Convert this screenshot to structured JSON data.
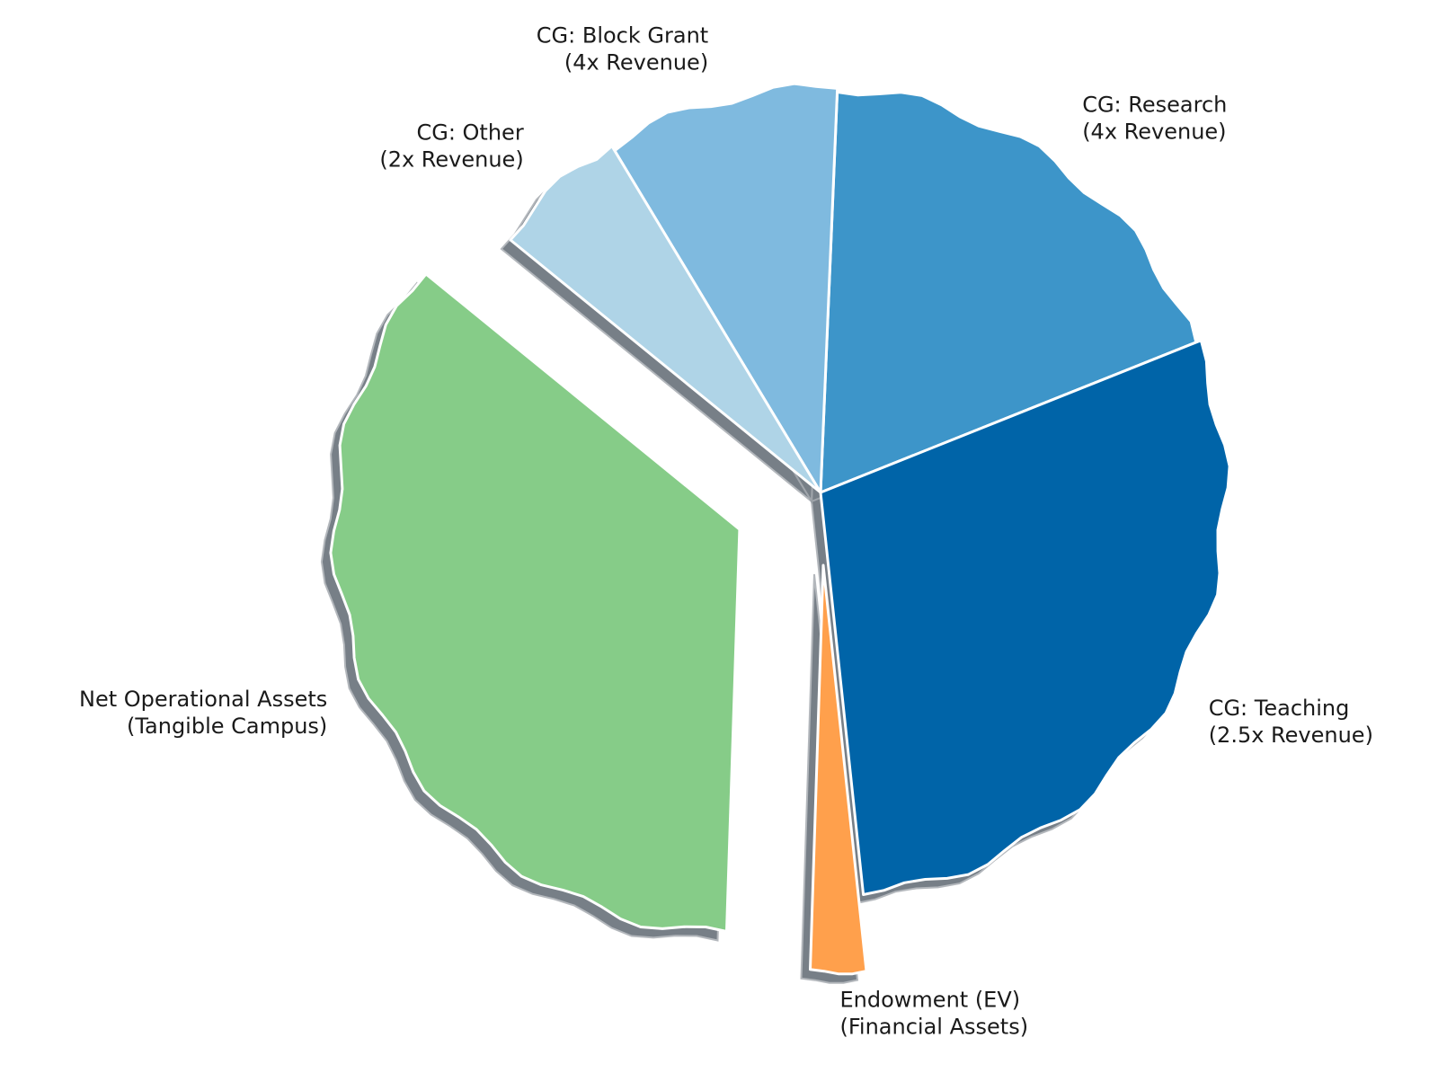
{
  "chart_data": {
    "type": "pie",
    "start_angle_deg": 21.8,
    "direction": "counterclockwise",
    "slices": [
      {
        "label": [
          "CG: Research",
          "(4x Revenue)"
        ],
        "value": 18.3,
        "color": "#3d95c9",
        "explode": 0
      },
      {
        "label": [
          "CG: Block Grant",
          "(4x Revenue)"
        ],
        "value": 9.3,
        "color": "#7fbadf",
        "explode": 0
      },
      {
        "label": [
          "CG: Other",
          "(2x Revenue)"
        ],
        "value": 5.5,
        "color": "#afd4e7",
        "explode": 0
      },
      {
        "label": [
          "Net Operational Assets",
          "(Tangible Campus)"
        ],
        "value": 35.4,
        "color": "#86cc88",
        "explode": 0.22
      },
      {
        "label": [
          "Endowment (EV)",
          "(Financial Assets)"
        ],
        "value": 2.2,
        "color": "#ffa04c",
        "explode": 0.18
      },
      {
        "label": [
          "CG: Teaching",
          "(2.5x Revenue)"
        ],
        "value": 29.4,
        "color": "#0064a8",
        "explode": 0
      }
    ],
    "shadow": true,
    "edge_color": "#ffffff"
  }
}
